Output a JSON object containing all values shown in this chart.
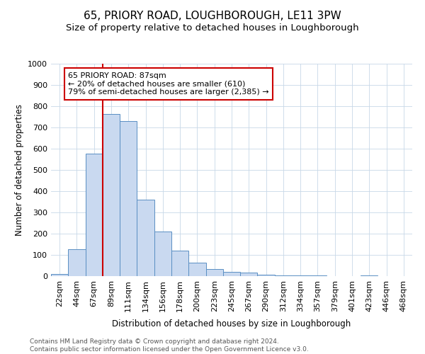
{
  "title": "65, PRIORY ROAD, LOUGHBOROUGH, LE11 3PW",
  "subtitle": "Size of property relative to detached houses in Loughborough",
  "xlabel": "Distribution of detached houses by size in Loughborough",
  "ylabel": "Number of detached properties",
  "footer_line1": "Contains HM Land Registry data © Crown copyright and database right 2024.",
  "footer_line2": "Contains public sector information licensed under the Open Government Licence v3.0.",
  "bar_labels": [
    "22sqm",
    "44sqm",
    "67sqm",
    "89sqm",
    "111sqm",
    "134sqm",
    "156sqm",
    "178sqm",
    "200sqm",
    "223sqm",
    "245sqm",
    "267sqm",
    "290sqm",
    "312sqm",
    "334sqm",
    "357sqm",
    "379sqm",
    "401sqm",
    "423sqm",
    "446sqm",
    "468sqm"
  ],
  "bar_values": [
    10,
    128,
    578,
    765,
    730,
    360,
    210,
    120,
    63,
    35,
    20,
    18,
    8,
    5,
    5,
    5,
    0,
    0,
    5,
    0,
    0
  ],
  "bar_color": "#c9d9f0",
  "bar_edge_color": "#5a8fc3",
  "vline_color": "#cc0000",
  "annotation_text": "65 PRIORY ROAD: 87sqm\n← 20% of detached houses are smaller (610)\n79% of semi-detached houses are larger (2,385) →",
  "annotation_box_color": "#cc0000",
  "ylim": [
    0,
    1000
  ],
  "yticks": [
    0,
    100,
    200,
    300,
    400,
    500,
    600,
    700,
    800,
    900,
    1000
  ],
  "background_color": "#ffffff",
  "grid_color": "#c8d8e8",
  "title_fontsize": 11,
  "subtitle_fontsize": 9.5,
  "footer_fontsize": 6.5,
  "axis_label_fontsize": 8.5,
  "tick_fontsize": 8,
  "annotation_fontsize": 8
}
